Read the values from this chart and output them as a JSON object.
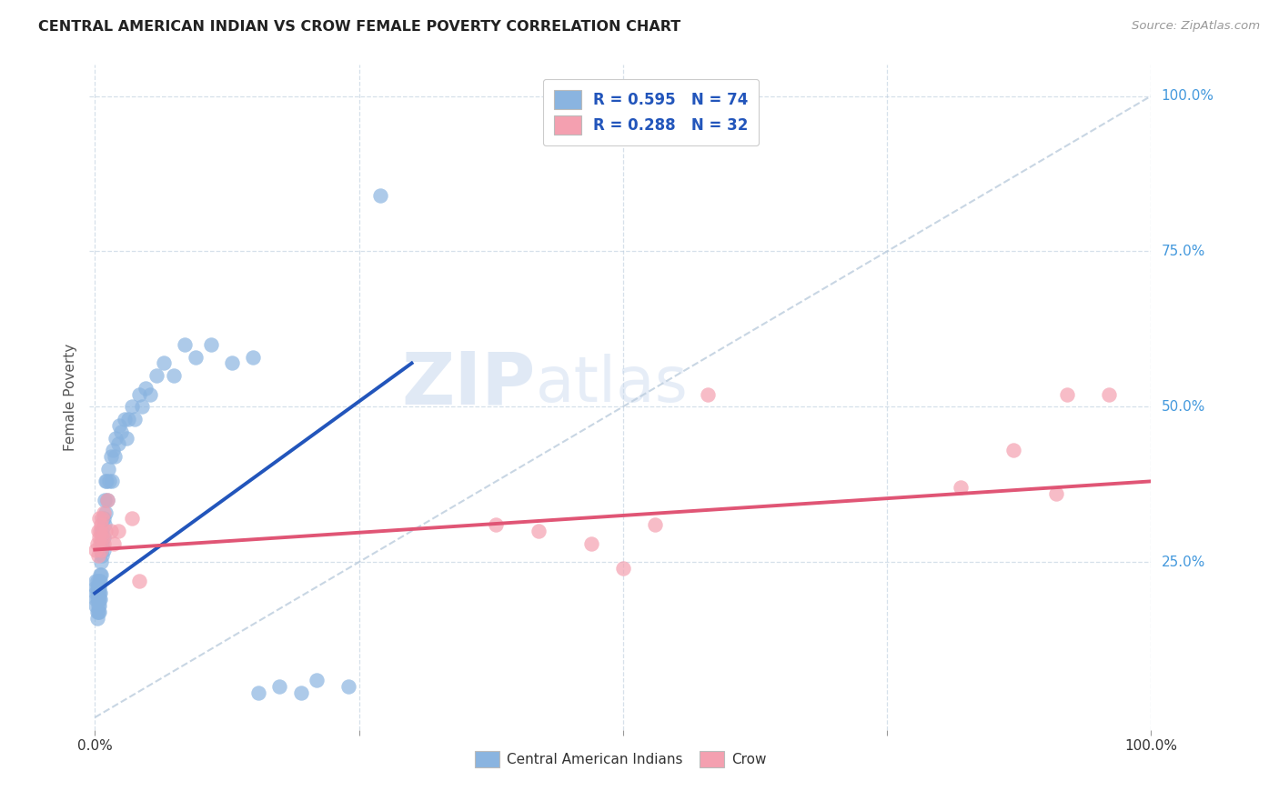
{
  "title": "CENTRAL AMERICAN INDIAN VS CROW FEMALE POVERTY CORRELATION CHART",
  "source": "Source: ZipAtlas.com",
  "ylabel": "Female Poverty",
  "legend_entry1": "R = 0.595   N = 74",
  "legend_entry2": "R = 0.288   N = 32",
  "legend_label1": "Central American Indians",
  "legend_label2": "Crow",
  "R1": 0.595,
  "N1": 74,
  "R2": 0.288,
  "N2": 32,
  "color_blue": "#8AB4E0",
  "color_pink": "#F4A0B0",
  "color_line_blue": "#2255BB",
  "color_line_pink": "#E05575",
  "color_diag": "#BBCCDD",
  "color_title": "#222222",
  "color_yticks": "#4499DD",
  "color_legend_text": "#2255BB",
  "watermark_zip": "ZIP",
  "watermark_atlas": "atlas",
  "xlim": [
    -0.005,
    1.0
  ],
  "ylim": [
    -0.02,
    1.05
  ],
  "blue_x": [
    0.001,
    0.001,
    0.001,
    0.001,
    0.001,
    0.002,
    0.002,
    0.002,
    0.002,
    0.002,
    0.002,
    0.003,
    0.003,
    0.003,
    0.003,
    0.003,
    0.004,
    0.004,
    0.004,
    0.004,
    0.004,
    0.004,
    0.005,
    0.005,
    0.005,
    0.005,
    0.006,
    0.006,
    0.006,
    0.007,
    0.007,
    0.007,
    0.008,
    0.008,
    0.008,
    0.009,
    0.009,
    0.01,
    0.01,
    0.011,
    0.012,
    0.013,
    0.014,
    0.015,
    0.016,
    0.017,
    0.019,
    0.02,
    0.022,
    0.023,
    0.025,
    0.028,
    0.03,
    0.032,
    0.035,
    0.038,
    0.042,
    0.045,
    0.048,
    0.052,
    0.058,
    0.065,
    0.075,
    0.085,
    0.095,
    0.11,
    0.13,
    0.15,
    0.155,
    0.175,
    0.195,
    0.21,
    0.24,
    0.27
  ],
  "blue_y": [
    0.2,
    0.21,
    0.19,
    0.18,
    0.22,
    0.17,
    0.2,
    0.19,
    0.21,
    0.22,
    0.16,
    0.18,
    0.2,
    0.17,
    0.21,
    0.19,
    0.18,
    0.2,
    0.22,
    0.17,
    0.19,
    0.21,
    0.2,
    0.23,
    0.19,
    0.22,
    0.25,
    0.23,
    0.27,
    0.28,
    0.3,
    0.26,
    0.29,
    0.32,
    0.27,
    0.31,
    0.35,
    0.33,
    0.38,
    0.38,
    0.35,
    0.4,
    0.38,
    0.42,
    0.38,
    0.43,
    0.42,
    0.45,
    0.44,
    0.47,
    0.46,
    0.48,
    0.45,
    0.48,
    0.5,
    0.48,
    0.52,
    0.5,
    0.53,
    0.52,
    0.55,
    0.57,
    0.55,
    0.6,
    0.58,
    0.6,
    0.57,
    0.58,
    0.04,
    0.05,
    0.04,
    0.06,
    0.05,
    0.84
  ],
  "pink_x": [
    0.001,
    0.002,
    0.003,
    0.003,
    0.004,
    0.004,
    0.005,
    0.005,
    0.006,
    0.006,
    0.007,
    0.007,
    0.008,
    0.008,
    0.01,
    0.012,
    0.015,
    0.018,
    0.022,
    0.035,
    0.042,
    0.38,
    0.42,
    0.47,
    0.5,
    0.53,
    0.58,
    0.82,
    0.87,
    0.91,
    0.92,
    0.96
  ],
  "pink_y": [
    0.27,
    0.28,
    0.26,
    0.3,
    0.29,
    0.32,
    0.28,
    0.3,
    0.27,
    0.31,
    0.29,
    0.32,
    0.28,
    0.33,
    0.3,
    0.35,
    0.3,
    0.28,
    0.3,
    0.32,
    0.22,
    0.31,
    0.3,
    0.28,
    0.24,
    0.31,
    0.52,
    0.37,
    0.43,
    0.36,
    0.52,
    0.52
  ],
  "blue_line_x": [
    0.0,
    0.3
  ],
  "blue_line_y": [
    0.2,
    0.57
  ],
  "pink_line_x": [
    0.0,
    1.0
  ],
  "pink_line_y": [
    0.27,
    0.38
  ]
}
